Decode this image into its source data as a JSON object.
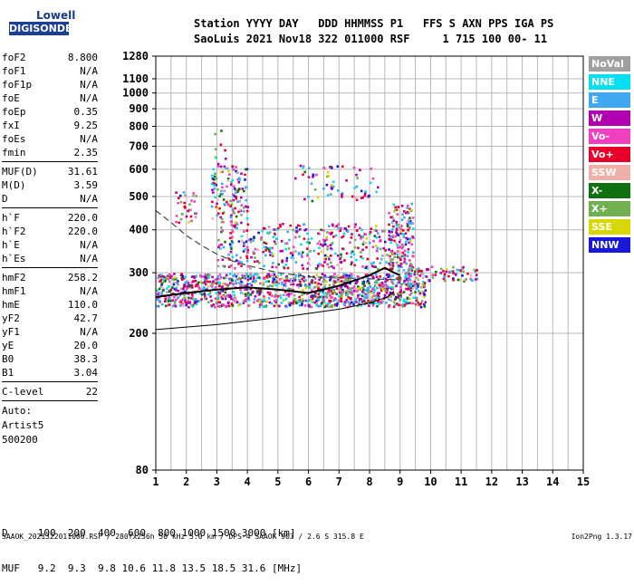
{
  "logo": {
    "line1": "Lowell",
    "line2": "DIGISONDE"
  },
  "header": {
    "row1": "Station YYYY DAY   DDD HHMMSS P1   FFS S AXN PPS IGA PS",
    "row2": "SaoLuis 2021 Nov18 322 011000 RSF     1 715 100 00- 11"
  },
  "params": [
    {
      "name": "foF2",
      "value": "8.800"
    },
    {
      "name": "foF1",
      "value": "N/A"
    },
    {
      "name": "foF1p",
      "value": "N/A"
    },
    {
      "name": "foE",
      "value": "N/A"
    },
    {
      "name": "foEp",
      "value": "0.35"
    },
    {
      "name": "fxI",
      "value": "9.25"
    },
    {
      "name": "foEs",
      "value": "N/A"
    },
    {
      "name": "fmin",
      "value": "2.35"
    },
    {
      "sep": true
    },
    {
      "name": "MUF(D)",
      "value": "31.61"
    },
    {
      "name": "M(D)",
      "value": "3.59"
    },
    {
      "name": "D",
      "value": "N/A"
    },
    {
      "sep": true
    },
    {
      "name": "h`F",
      "value": "220.0"
    },
    {
      "name": "h`F2",
      "value": "220.0"
    },
    {
      "name": "h`E",
      "value": "N/A"
    },
    {
      "name": "h`Es",
      "value": "N/A"
    },
    {
      "sep": true
    },
    {
      "name": "hmF2",
      "value": "258.2"
    },
    {
      "name": "hmF1",
      "value": "N/A"
    },
    {
      "name": "hmE",
      "value": "110.0"
    },
    {
      "name": "yF2",
      "value": "42.7"
    },
    {
      "name": "yF1",
      "value": "N/A"
    },
    {
      "name": "yE",
      "value": "20.0"
    },
    {
      "name": "B0",
      "value": "38.3"
    },
    {
      "name": "B1",
      "value": "3.04"
    },
    {
      "sep": true
    },
    {
      "name": "C-level",
      "value": "22"
    },
    {
      "sep": true
    }
  ],
  "auto": [
    "Auto:",
    "Artist5",
    "500200"
  ],
  "legend": [
    {
      "label": "NoVal",
      "color": "#a0a0a0"
    },
    {
      "label": "NNE",
      "color": "#00e0f0"
    },
    {
      "label": "E",
      "color": "#40a8f0"
    },
    {
      "label": "W",
      "color": "#b000b0"
    },
    {
      "label": "Vo-",
      "color": "#f040c0"
    },
    {
      "label": "Vo+",
      "color": "#e8002a"
    },
    {
      "label": "SSW",
      "color": "#f0b0a8"
    },
    {
      "label": "X-",
      "color": "#107010"
    },
    {
      "label": "X+",
      "color": "#70b050"
    },
    {
      "label": "SSE",
      "color": "#d8d800"
    },
    {
      "label": "NNW",
      "color": "#1818d8"
    }
  ],
  "bottom_table": {
    "row1": "D     100  200  400  600  800 1000 1500 3000 [km]",
    "row2": "MUF   9.2  9.3  9.8 10.6 11.8 13.5 18.5 31.6 [MHz]"
  },
  "footer": {
    "left": "SAAOK_2021322011000.RSF / 280fx256h 50 kHz 5.0 km / DPS-4 SAAOK 903 / 2.6 S 315.8 E",
    "right": "Ion2Png 1.3.17"
  },
  "chart_data": {
    "type": "scatter",
    "x_ticks": [
      "1",
      "2",
      "3",
      "4",
      "5",
      "6",
      "7",
      "8",
      "9",
      "10",
      "11",
      "12",
      "13",
      "14",
      "15"
    ],
    "y_ticks": [
      "80",
      "200",
      "300",
      "400",
      "500",
      "600",
      "700",
      "800",
      "900",
      "1000",
      "1100",
      "1280"
    ],
    "xlim": [
      1,
      15
    ],
    "y_scale": "log",
    "ylim": [
      80,
      1280
    ],
    "grid": true,
    "series": [
      {
        "name": "NoVal",
        "color": "#a0a0a0"
      },
      {
        "name": "NNE",
        "color": "#00e0f0"
      },
      {
        "name": "E",
        "color": "#40a8f0"
      },
      {
        "name": "W",
        "color": "#b000b0"
      },
      {
        "name": "Vo-",
        "color": "#f040c0"
      },
      {
        "name": "Vo+",
        "color": "#e8002a"
      },
      {
        "name": "SSW",
        "color": "#f0b0a8"
      },
      {
        "name": "X-",
        "color": "#107010"
      },
      {
        "name": "X+",
        "color": "#70b050"
      },
      {
        "name": "SSE",
        "color": "#d8d800"
      },
      {
        "name": "NNW",
        "color": "#1818d8"
      }
    ],
    "echo_clusters": [
      {
        "x": [
          1.0,
          9.8
        ],
        "y": [
          240,
          300
        ],
        "density": 1.0
      },
      {
        "x": [
          9.0,
          11.5
        ],
        "y": [
          285,
          315
        ],
        "density": 0.5
      },
      {
        "x": [
          1.6,
          2.3
        ],
        "y": [
          420,
          520
        ],
        "density": 0.35
      },
      {
        "x": [
          2.8,
          4.0
        ],
        "y": [
          420,
          620
        ],
        "density": 0.45
      },
      {
        "x": [
          2.9,
          3.3
        ],
        "y": [
          620,
          800
        ],
        "density": 0.15
      },
      {
        "x": [
          3.0,
          9.2
        ],
        "y": [
          310,
          420
        ],
        "density": 0.35
      },
      {
        "x": [
          5.5,
          8.3
        ],
        "y": [
          480,
          620
        ],
        "density": 0.15
      },
      {
        "x": [
          8.6,
          9.4
        ],
        "y": [
          300,
          480
        ],
        "density": 0.5
      }
    ],
    "black_trace": {
      "x": [
        1.0,
        2.0,
        3.0,
        4.0,
        5.0,
        6.0,
        7.0,
        8.0,
        8.5,
        8.8,
        9.0
      ],
      "y": [
        255,
        262,
        268,
        272,
        268,
        262,
        275,
        295,
        310,
        300,
        295
      ]
    },
    "lower_curve": {
      "x": [
        1.0,
        3.0,
        5.0,
        7.0,
        8.0,
        8.6,
        8.8
      ],
      "y": [
        205,
        212,
        222,
        235,
        245,
        255,
        265
      ]
    },
    "dashed_curve": {
      "x": [
        1.0,
        1.5,
        2.0,
        2.5,
        3.0,
        3.5,
        4.0,
        5.0,
        6.0,
        7.0,
        8.0,
        9.0
      ],
      "y": [
        455,
        420,
        385,
        360,
        340,
        325,
        315,
        300,
        292,
        290,
        288,
        286
      ]
    }
  }
}
